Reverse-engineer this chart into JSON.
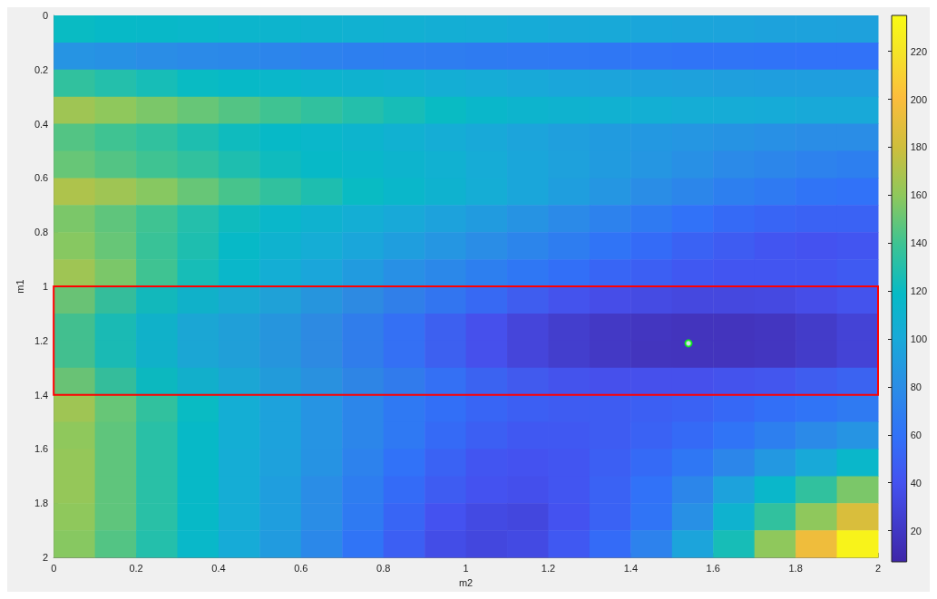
{
  "chart_data": {
    "type": "heatmap",
    "xlabel": "m2",
    "ylabel": "m1",
    "xlim": [
      0,
      2
    ],
    "xticks": [
      0,
      0.2,
      0.4,
      0.6,
      0.8,
      1,
      1.2,
      1.4,
      1.6,
      1.8,
      2
    ],
    "ylim": [
      2,
      0
    ],
    "yticks": [
      0,
      0.2,
      0.4,
      0.6,
      0.8,
      1,
      1.2,
      1.4,
      1.6,
      1.8,
      2
    ],
    "clim": [
      7,
      235
    ],
    "cticks": [
      20,
      40,
      60,
      80,
      100,
      120,
      140,
      160,
      180,
      200,
      220
    ],
    "cells": [
      [
        120,
        118,
        117,
        115,
        113,
        112,
        110,
        108,
        107,
        105,
        104,
        102,
        100,
        100,
        98,
        97,
        96,
        95,
        95,
        94
      ],
      [
        85,
        83,
        80,
        78,
        76,
        74,
        72,
        70,
        69,
        68,
        67,
        66,
        65,
        64,
        63,
        62,
        62,
        61,
        60,
        60
      ],
      [
        135,
        130,
        125,
        120,
        118,
        115,
        112,
        110,
        108,
        105,
        103,
        100,
        98,
        96,
        95,
        94,
        93,
        92,
        92,
        92
      ],
      [
        165,
        160,
        155,
        150,
        145,
        140,
        135,
        130,
        125,
        120,
        115,
        112,
        110,
        108,
        106,
        104,
        103,
        102,
        100,
        100
      ],
      [
        145,
        140,
        135,
        128,
        122,
        118,
        115,
        112,
        108,
        104,
        100,
        96,
        93,
        90,
        88,
        86,
        84,
        82,
        80,
        80
      ],
      [
        150,
        145,
        140,
        135,
        128,
        122,
        118,
        115,
        112,
        108,
        103,
        98,
        94,
        90,
        86,
        82,
        78,
        75,
        72,
        70
      ],
      [
        170,
        165,
        158,
        150,
        142,
        135,
        128,
        120,
        115,
        110,
        104,
        98,
        92,
        86,
        80,
        75,
        70,
        66,
        62,
        60
      ],
      [
        155,
        148,
        140,
        130,
        122,
        115,
        110,
        105,
        100,
        95,
        90,
        84,
        78,
        72,
        66,
        60,
        55,
        52,
        50,
        50
      ],
      [
        158,
        150,
        138,
        128,
        118,
        110,
        104,
        98,
        92,
        86,
        80,
        74,
        68,
        62,
        56,
        50,
        46,
        42,
        40,
        42
      ],
      [
        165,
        155,
        140,
        125,
        115,
        105,
        98,
        90,
        82,
        76,
        70,
        64,
        58,
        52,
        48,
        44,
        42,
        42,
        42,
        45
      ],
      [
        150,
        135,
        122,
        112,
        104,
        96,
        88,
        80,
        72,
        64,
        56,
        48,
        42,
        38,
        36,
        34,
        34,
        35,
        38,
        42
      ],
      [
        140,
        125,
        112,
        100,
        95,
        88,
        80,
        70,
        60,
        50,
        40,
        32,
        26,
        22,
        20,
        18,
        18,
        20,
        24,
        30
      ],
      [
        140,
        125,
        112,
        100,
        95,
        88,
        80,
        70,
        60,
        50,
        40,
        32,
        26,
        22,
        19,
        18,
        18,
        20,
        24,
        30
      ],
      [
        150,
        135,
        120,
        110,
        100,
        92,
        85,
        76,
        68,
        60,
        52,
        46,
        42,
        40,
        40,
        40,
        42,
        44,
        48,
        52
      ],
      [
        165,
        150,
        135,
        120,
        105,
        95,
        85,
        75,
        65,
        58,
        52,
        48,
        46,
        46,
        48,
        50,
        54,
        58,
        62,
        66
      ],
      [
        160,
        148,
        132,
        118,
        105,
        95,
        85,
        75,
        65,
        55,
        48,
        44,
        44,
        46,
        50,
        55,
        62,
        70,
        78,
        85
      ],
      [
        162,
        148,
        132,
        118,
        104,
        94,
        84,
        72,
        60,
        50,
        42,
        40,
        42,
        48,
        55,
        64,
        75,
        88,
        100,
        115
      ],
      [
        162,
        148,
        132,
        118,
        104,
        92,
        80,
        68,
        56,
        46,
        40,
        38,
        42,
        50,
        60,
        75,
        95,
        115,
        135,
        155
      ],
      [
        160,
        148,
        132,
        118,
        104,
        92,
        80,
        66,
        52,
        40,
        34,
        32,
        40,
        50,
        62,
        82,
        110,
        135,
        160,
        185
      ],
      [
        158,
        145,
        130,
        116,
        102,
        90,
        76,
        62,
        48,
        36,
        32,
        34,
        44,
        56,
        72,
        96,
        125,
        160,
        195,
        230
      ]
    ],
    "series": [
      {
        "type": "scatter",
        "x": [
          1.54
        ],
        "values": [
          1.21
        ],
        "color": "#00ff00"
      }
    ],
    "marker": "circle",
    "bands": [
      {
        "axis": "y",
        "from": 1,
        "to": 1.4,
        "color": "#ff0000"
      }
    ],
    "grid": false
  }
}
